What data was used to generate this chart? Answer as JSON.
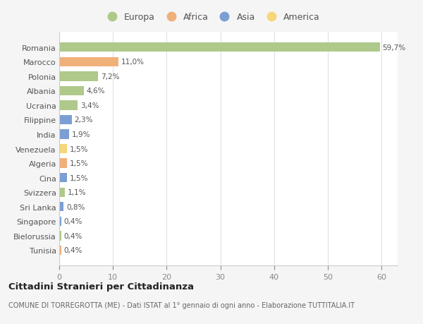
{
  "countries": [
    "Romania",
    "Marocco",
    "Polonia",
    "Albania",
    "Ucraina",
    "Filippine",
    "India",
    "Venezuela",
    "Algeria",
    "Cina",
    "Svizzera",
    "Sri Lanka",
    "Singapore",
    "Bielorussia",
    "Tunisia"
  ],
  "values": [
    59.7,
    11.0,
    7.2,
    4.6,
    3.4,
    2.3,
    1.9,
    1.5,
    1.5,
    1.5,
    1.1,
    0.8,
    0.4,
    0.4,
    0.4
  ],
  "labels": [
    "59,7%",
    "11,0%",
    "7,2%",
    "4,6%",
    "3,4%",
    "2,3%",
    "1,9%",
    "1,5%",
    "1,5%",
    "1,5%",
    "1,1%",
    "0,8%",
    "0,4%",
    "0,4%",
    "0,4%"
  ],
  "colors": [
    "#aec98a",
    "#f0b07a",
    "#aec98a",
    "#aec98a",
    "#aec98a",
    "#7b9fd4",
    "#7b9fd4",
    "#f5d67a",
    "#f0b07a",
    "#7b9fd4",
    "#aec98a",
    "#7b9fd4",
    "#7b9fd4",
    "#aec98a",
    "#f0b07a"
  ],
  "continent_colors": {
    "Europa": "#aec98a",
    "Africa": "#f0b07a",
    "Asia": "#7b9fd4",
    "America": "#f5d67a"
  },
  "legend_labels": [
    "Europa",
    "Africa",
    "Asia",
    "America"
  ],
  "xlim": [
    0,
    63
  ],
  "xticks": [
    0,
    10,
    20,
    30,
    40,
    50,
    60
  ],
  "title": "Cittadini Stranieri per Cittadinanza",
  "subtitle": "COMUNE DI TORREGROTTA (ME) - Dati ISTAT al 1° gennaio di ogni anno - Elaborazione TUTTITALIA.IT",
  "bg_color": "#f5f5f5",
  "bar_bg_color": "#ffffff"
}
